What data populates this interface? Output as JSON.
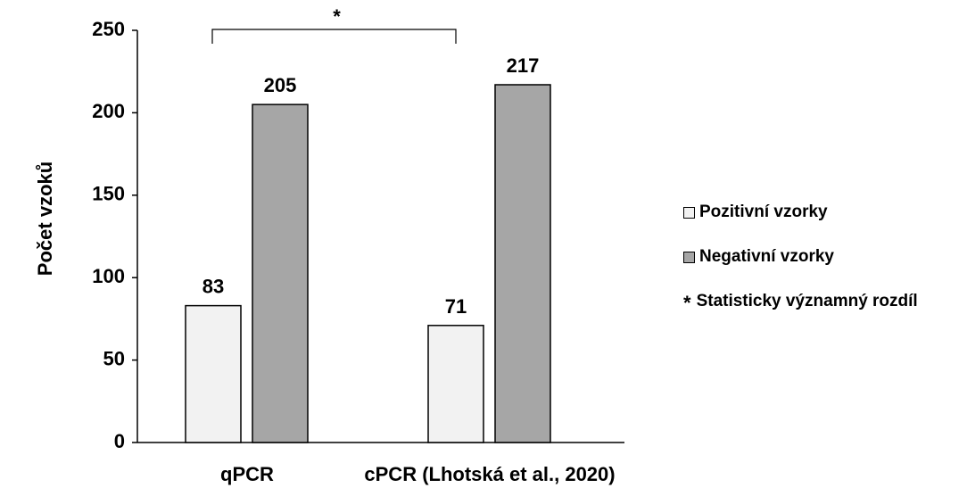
{
  "chart_data": {
    "type": "bar",
    "title": "",
    "xlabel": "",
    "ylabel": "Počet vzoků",
    "ylim": [
      0,
      250
    ],
    "yticks": [
      0,
      50,
      100,
      150,
      200,
      250
    ],
    "categories": [
      "qPCR",
      "cPCR (Lhotská et al., 2020)"
    ],
    "series": [
      {
        "name": "Pozitivní vzorky",
        "values": [
          83,
          71
        ],
        "color": "#f2f2f2"
      },
      {
        "name": "Negativní vzorky",
        "values": [
          205,
          217
        ],
        "color": "#a6a6a6"
      }
    ],
    "significance_marker": "*",
    "significance_note": "Statisticky významný rozdíl",
    "grid": false,
    "legend_position": "right"
  }
}
